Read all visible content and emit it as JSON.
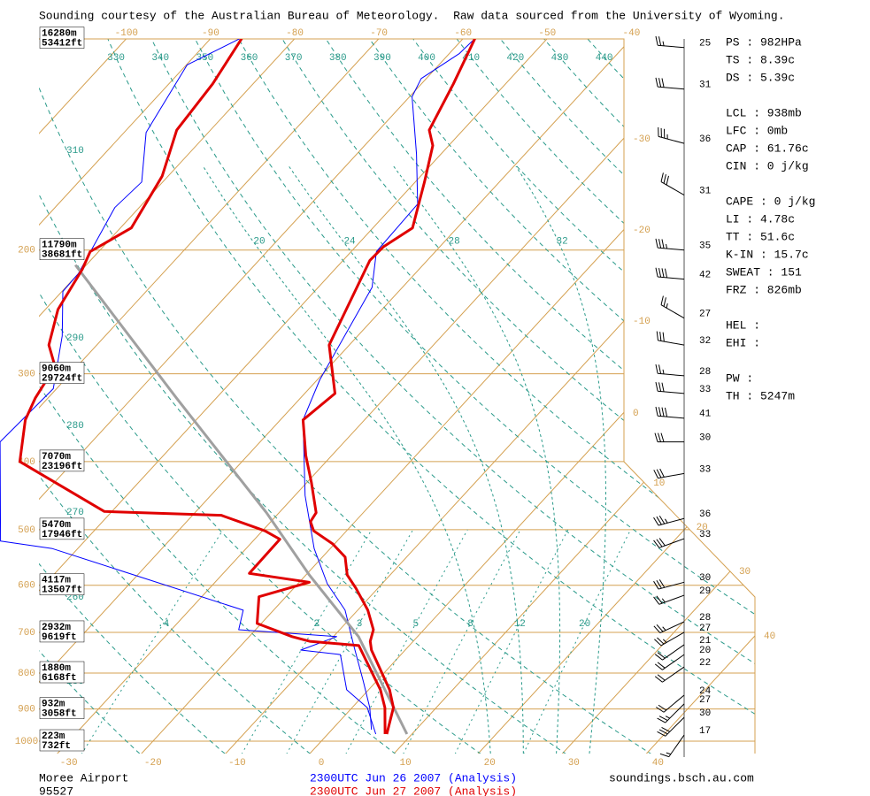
{
  "header": "Sounding courtesy of the Australian Bureau of Meteorology.  Raw data sourced from the University of Wyoming.",
  "chart_data": {
    "type": "skewt",
    "isobars": [
      {
        "value": 100,
        "height_m": "16280m",
        "height_ft": "53412ft"
      },
      {
        "value": 200,
        "height_m": "11790m",
        "height_ft": "38681ft"
      },
      {
        "value": 300,
        "height_m": "9060m",
        "height_ft": "29724ft"
      },
      {
        "value": 400,
        "height_m": "7070m",
        "height_ft": "23196ft"
      },
      {
        "value": 500,
        "height_m": "5470m",
        "height_ft": "17946ft"
      },
      {
        "value": 600,
        "height_m": "4117m",
        "height_ft": "13507ft"
      },
      {
        "value": 700,
        "height_m": "2932m",
        "height_ft": "9619ft"
      },
      {
        "value": 800,
        "height_m": "1880m",
        "height_ft": "6168ft"
      },
      {
        "value": 900,
        "height_m": "932m",
        "height_ft": "3058ft"
      },
      {
        "value": 1000,
        "height_m": "223m",
        "height_ft": "732ft"
      }
    ],
    "yticks": [
      200,
      300,
      400,
      500,
      600,
      700,
      800,
      900,
      1000
    ],
    "isotherms": [
      -100,
      -90,
      -80,
      -70,
      -60,
      -50,
      -40,
      -30,
      -20,
      -10,
      0,
      10,
      20,
      30,
      40
    ],
    "xticks": [
      -30,
      -20,
      -10,
      0,
      10,
      20,
      30,
      40
    ],
    "top_ticks": [
      -100,
      -90,
      -80,
      -70,
      -60,
      -50,
      -40
    ],
    "right_ticks": [
      -30,
      -20,
      -10,
      0,
      10,
      20,
      30,
      40
    ],
    "dry_adiabats_left": [
      310,
      300,
      290,
      280,
      270,
      260,
      250
    ],
    "dry_adiabats_top": [
      330,
      340,
      350,
      360,
      370,
      380,
      390,
      400,
      410,
      420,
      430,
      440
    ],
    "moist_adiabats": [
      20,
      24,
      28,
      32
    ],
    "mixing_ratios": [
      {
        "value": 0.4,
        "label": ".4"
      },
      2,
      3,
      5,
      8,
      12,
      20
    ],
    "series": [
      {
        "name": "2300UTC Jun 26 2007 (Analysis)",
        "color": "#0000ff",
        "temperature": {
          "pressure": [
            963,
            896,
            821,
            731,
            651,
            597,
            532,
            447,
            349,
            306,
            254,
            226,
            201,
            172,
            146,
            121,
            114,
            105,
            100
          ],
          "values": [
            4.7,
            2.1,
            -1.6,
            -6.6,
            -11.5,
            -16.5,
            -21.9,
            -28.8,
            -37.3,
            -39.7,
            -42.1,
            -43.6,
            -47.0,
            -47.3,
            -52.9,
            -59.7,
            -60.6,
            -58.8,
            -58.6
          ]
        },
        "dewpoint": {
          "pressure": [
            977,
            896,
            845,
            753,
            742,
            710,
            694,
            651,
            532,
            519,
            375,
            315,
            265,
            229,
            216,
            174,
            160,
            136,
            109,
            100
          ],
          "values": [
            5.7,
            1.8,
            -2.6,
            -7.2,
            -12.4,
            -9.6,
            -22.0,
            -23.6,
            -53.0,
            -60.0,
            -70.9,
            -70.4,
            -75.1,
            -79.9,
            -80.0,
            -82.9,
            -82.5,
            -87.4,
            -89.9,
            -86.5
          ]
        }
      },
      {
        "name": "2300UTC Jun 27 2007 (Analysis)",
        "color": "#e00000",
        "temperature": {
          "pressure": [
            977,
            896,
            845,
            742,
            721,
            694,
            651,
            606,
            580,
            547,
            524,
            502,
            487,
            473,
            428,
            392,
            349,
            320,
            273,
            207,
            198,
            186,
            160,
            142,
            135,
            116,
            100
          ],
          "values": [
            7.0,
            4.9,
            2.5,
            -4.0,
            -5.1,
            -6.0,
            -8.8,
            -12.6,
            -15.1,
            -17.3,
            -20.2,
            -23.9,
            -25.3,
            -25.6,
            -29.5,
            -33.1,
            -37.3,
            -36.4,
            -42.4,
            -46.8,
            -46.7,
            -45.3,
            -48.9,
            -51.9,
            -54.0,
            -56.2,
            -58.6
          ]
        },
        "dewpoint": {
          "pressure": [
            977,
            896,
            845,
            731,
            721,
            710,
            680,
            623,
            594,
            577,
            516,
            502,
            477,
            471,
            400,
            349,
            325,
            293,
            273,
            243,
            213,
            201,
            186,
            157,
            135,
            116,
            100
          ],
          "values": [
            6.8,
            3.9,
            1.4,
            -6.0,
            -12.3,
            -14.9,
            -20.5,
            -23.2,
            -18.8,
            -26.9,
            -27.0,
            -29.7,
            -36.6,
            -50.9,
            -66.4,
            -70.3,
            -71.5,
            -72.6,
            -75.7,
            -78.5,
            -80.0,
            -81.0,
            -78.7,
            -80.7,
            -84.0,
            -84.8,
            -86.3
          ]
        }
      }
    ],
    "parcel": {
      "color": "#a0a0a0",
      "pressure": [
        977,
        710,
        580,
        473,
        325,
        210
      ],
      "values": [
        9.4,
        -7.0,
        -19.6,
        -31.5,
        -54.7,
        -81.3
      ]
    },
    "winds": {
      "pressure": [
        103,
        118,
        141,
        167,
        200,
        220,
        250,
        273,
        302,
        320,
        347,
        375,
        416,
        482,
        515,
        594,
        620,
        676,
        700,
        729,
        753,
        784,
        860,
        885,
        925,
        980
      ],
      "speed": [
        25,
        31,
        36,
        31,
        35,
        42,
        27,
        32,
        28,
        33,
        41,
        30,
        33,
        36,
        33,
        30,
        29,
        28,
        27,
        21,
        20,
        22,
        24,
        27,
        30,
        17
      ],
      "direction": [
        275,
        275,
        285,
        300,
        275,
        275,
        300,
        280,
        275,
        275,
        275,
        270,
        260,
        255,
        250,
        255,
        250,
        245,
        240,
        235,
        235,
        235,
        230,
        225,
        225,
        215
      ]
    },
    "indices": [
      [
        "PS : 982HPa",
        "TS : 8.39c",
        "DS : 5.39c"
      ],
      [
        "LCL : 938mb",
        "LFC : 0mb",
        "CAP : 61.76c",
        "CIN : 0 j/kg"
      ],
      [
        "CAPE : 0 j/kg",
        "LI : 4.78c",
        "TT : 51.6c",
        "K-IN : 15.7c",
        "SWEAT : 151",
        "FRZ : 826mb"
      ],
      [
        "HEL :",
        "EHI :"
      ],
      [
        "PW :",
        "TH : 5247m"
      ]
    ],
    "station": "Moree Airport",
    "station_id": "95527",
    "credit": "soundings.bsch.au.com"
  }
}
